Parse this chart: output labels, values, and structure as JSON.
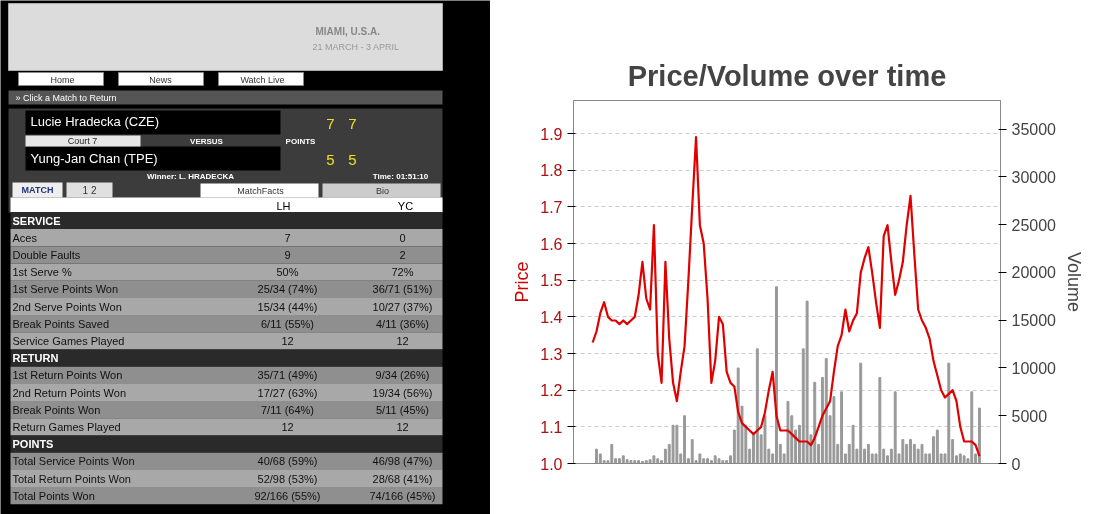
{
  "chart_data": [
    {
      "type": "other",
      "annotations": [
        "MIAMI, U.S.A.",
        "21 MARCH - 3 APRIL",
        "Home",
        "News",
        "Watch Live",
        "» Click a Match to Return",
        "Lucie Hradecka (CZE)",
        "7",
        "7",
        "Court 7",
        "VERSUS",
        "POINTS",
        "Yung-Jan Chan (TPE)",
        "5",
        "5",
        "Winner: L. HRADECKA",
        "Time: 01:51:10",
        "MATCH",
        "1 2",
        "MatchFacts",
        "Bio",
        "LH",
        "YC",
        "SERVICE",
        "Aces",
        "7",
        "0",
        "Double Faults",
        "9",
        "2",
        "1st Serve %",
        "50%",
        "72%",
        "1st Serve Points Won",
        "25/34 (74%)",
        "36/71 (51%)",
        "2nd Serve Points Won",
        "15/34 (44%)",
        "10/27 (37%)",
        "Break Points Saved",
        "6/11 (55%)",
        "4/11 (36%)",
        "Service Games Played",
        "12",
        "12",
        "RETURN",
        "1st Return Points Won",
        "35/71 (49%)",
        "9/34 (26%)",
        "2nd Return Points Won",
        "17/27 (63%)",
        "19/34 (56%)",
        "Break Points Won",
        "7/11 (64%)",
        "5/11 (45%)",
        "Return Games Played",
        "12",
        "12",
        "POINTS",
        "Total Service Points Won",
        "40/68 (59%)",
        "46/98 (47%)",
        "Total Return Points Won",
        "52/98 (53%)",
        "28/68 (41%)",
        "Total Points Won",
        "92/166 (55%)",
        "74/166 (45%)"
      ]
    },
    {
      "type": "line",
      "title": "Price/Volume over time",
      "ylabel": "Price",
      "y2label": "Volume",
      "categories": [
        null,
        null,
        null,
        null,
        null,
        null,
        null,
        null,
        null,
        null,
        null,
        null,
        null,
        null,
        null,
        null,
        null,
        null,
        null,
        null,
        null,
        null,
        null,
        null,
        null,
        null,
        null,
        null,
        null,
        null,
        null,
        null,
        null,
        null,
        null,
        null,
        null,
        null,
        null,
        null,
        null,
        null,
        null,
        null,
        null,
        null,
        null,
        null,
        null,
        null,
        null,
        null,
        null,
        null,
        null,
        null,
        null,
        null,
        null,
        null,
        null,
        null,
        null,
        null,
        null,
        null,
        null,
        null,
        null,
        null,
        null,
        null,
        null,
        null,
        null,
        null,
        null,
        null,
        null,
        null,
        null,
        null,
        null,
        null,
        null,
        null,
        null,
        null,
        null,
        null,
        null,
        null,
        null,
        null,
        null,
        null,
        null,
        null,
        null,
        null,
        null,
        null
      ],
      "series": [
        {
          "type": "bar",
          "axis": "y2",
          "color": "#999999",
          "values": [
            0,
            1500,
            1000,
            300,
            300,
            2000,
            500,
            500,
            800,
            400,
            300,
            300,
            300,
            200,
            300,
            400,
            800,
            500,
            300,
            1500,
            2000,
            4000,
            4000,
            1000,
            5000,
            500,
            2500,
            300,
            1000,
            500,
            500,
            300,
            800,
            500,
            300,
            300,
            800,
            3500,
            10000,
            6000,
            4000,
            1500,
            3000,
            12000,
            3000,
            5000,
            1500,
            1000,
            18500,
            2000,
            1000,
            6500,
            5000,
            3500,
            4000,
            12000,
            17000,
            3000,
            8500,
            2000,
            9000,
            11000,
            5000,
            7000,
            2000,
            7500,
            1000,
            2000,
            4000,
            1500,
            10500,
            1500,
            2000,
            1000,
            1000,
            9000,
            1500,
            800,
            1500,
            7500,
            1000,
            2500,
            2000,
            2500,
            2000,
            1500,
            2000,
            1000,
            1000,
            2800,
            3500,
            1000,
            1000,
            10500,
            2500,
            800,
            1000,
            800,
            500,
            7500,
            1000,
            5800
          ]
        },
        {
          "type": "line",
          "color": "#e00000",
          "values": [
            1.33,
            1.36,
            1.41,
            1.44,
            1.4,
            1.39,
            1.39,
            1.38,
            1.39,
            1.38,
            1.39,
            1.4,
            1.46,
            1.55,
            1.45,
            1.42,
            1.65,
            1.3,
            1.22,
            1.55,
            1.34,
            1.22,
            1.17,
            1.25,
            1.32,
            1.5,
            1.7,
            1.89,
            1.65,
            1.6,
            1.45,
            1.22,
            1.28,
            1.4,
            1.38,
            1.25,
            1.22,
            1.21,
            1.14,
            1.11,
            1.1,
            1.09,
            1.08,
            1.09,
            1.1,
            1.14,
            1.2,
            1.25,
            1.13,
            1.09,
            1.09,
            1.09,
            1.08,
            1.07,
            1.06,
            1.06,
            1.06,
            1.05,
            1.07,
            1.1,
            1.13,
            1.15,
            1.17,
            1.25,
            1.32,
            1.35,
            1.42,
            1.36,
            1.39,
            1.41,
            1.52,
            1.56,
            1.59,
            1.52,
            1.44,
            1.37,
            1.62,
            1.65,
            1.55,
            1.46,
            1.5,
            1.55,
            1.65,
            1.73,
            1.57,
            1.42,
            1.39,
            1.37,
            1.34,
            1.28,
            1.24,
            1.2,
            1.18,
            1.19,
            1.2,
            1.17,
            1.1,
            1.06,
            1.06,
            1.06,
            1.05,
            1.02
          ]
        }
      ],
      "ylim": [
        1.0,
        1.99
      ],
      "yticks": [
        {
          "value": 1.0,
          "label": "1.0"
        },
        1.1,
        1.2,
        1.3,
        1.4,
        1.5,
        1.6,
        1.7,
        1.8,
        1.9
      ],
      "y2lim": [
        0,
        38000
      ],
      "y2ticks": [
        0,
        5000,
        10000,
        15000,
        20000,
        25000,
        30000,
        35000
      ],
      "grid": "y",
      "tick_labels": "y"
    }
  ]
}
